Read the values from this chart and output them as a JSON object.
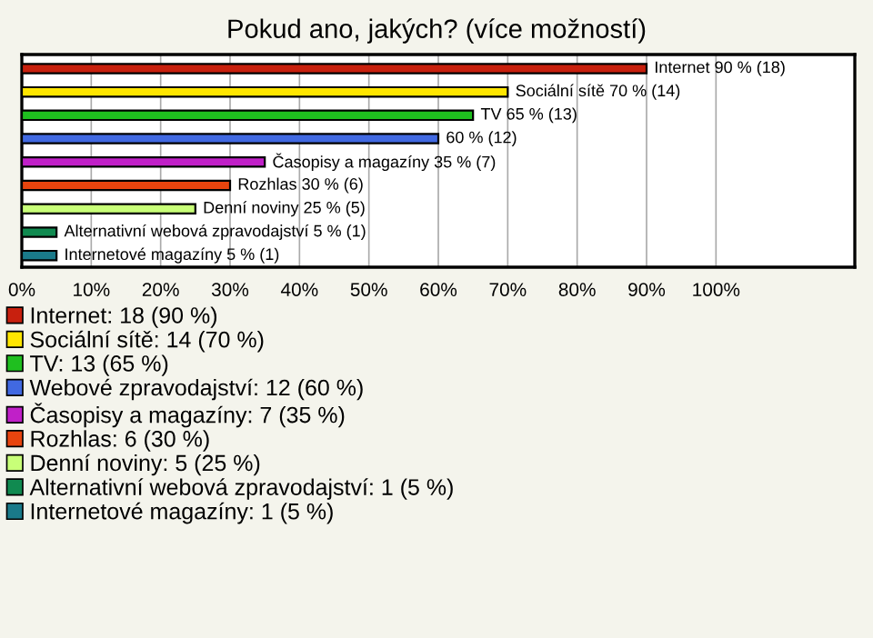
{
  "chart_data": {
    "type": "bar",
    "orientation": "horizontal",
    "title": "Pokud ano, jakých? (více možností)",
    "categories": [
      null,
      null,
      null,
      null,
      null,
      null,
      null,
      null,
      null
    ],
    "series": [
      {
        "name": "Internet: 18 (90 %)",
        "color": "#c8200e",
        "values": [
          90,
          null,
          null,
          null,
          null,
          null,
          null,
          null,
          null
        ],
        "value_labels": [
          "Internet 90 % (18)",
          null,
          null,
          null,
          null,
          null,
          null,
          null,
          null
        ]
      },
      {
        "name": "Sociální sítě: 14 (70 %)",
        "color": "#ffe600",
        "values": [
          null,
          70,
          null,
          null,
          null,
          null,
          null,
          null,
          null
        ],
        "value_labels": [
          null,
          "Sociální sítě 70 % (14)",
          null,
          null,
          null,
          null,
          null,
          null,
          null
        ]
      },
      {
        "name": "TV: 13 (65 %)",
        "color": "#1fbf1f",
        "values": [
          null,
          null,
          65,
          null,
          null,
          null,
          null,
          null,
          null
        ],
        "value_labels": [
          null,
          null,
          "TV 65 % (13)",
          null,
          null,
          null,
          null,
          null,
          null
        ]
      },
      {
        "name": "Webové zpravodajství: 12 (60 %)",
        "color": "#4169e1",
        "values": [
          null,
          null,
          null,
          60,
          null,
          null,
          null,
          null,
          null
        ],
        "value_labels": [
          null,
          null,
          null,
          "60 % (12)",
          null,
          null,
          null,
          null,
          null
        ]
      },
      {
        "name": "Časopisy a magazíny: 7 (35 %)",
        "color": "#c020c8",
        "values": [
          null,
          null,
          null,
          null,
          35,
          null,
          null,
          null,
          null
        ],
        "value_labels": [
          null,
          null,
          null,
          null,
          "Časopisy a magazíny 35 % (7)",
          null,
          null,
          null,
          null
        ]
      },
      {
        "name": "Rozhlas: 6 (30 %)",
        "color": "#e8440e",
        "values": [
          null,
          null,
          null,
          null,
          null,
          30,
          null,
          null,
          null
        ],
        "value_labels": [
          null,
          null,
          null,
          null,
          null,
          "Rozhlas 30 % (6)",
          null,
          null,
          null
        ]
      },
      {
        "name": "Denní noviny: 5 (25 %)",
        "color": "#c8ff78",
        "values": [
          null,
          null,
          null,
          null,
          null,
          null,
          25,
          null,
          null
        ],
        "value_labels": [
          null,
          null,
          null,
          null,
          null,
          null,
          "Denní noviny 25 % (5)",
          null,
          null
        ]
      },
      {
        "name": "Alternativní webová zpravodajství: 1 (5 %)",
        "color": "#108a50",
        "values": [
          null,
          null,
          null,
          null,
          null,
          null,
          null,
          5,
          null
        ],
        "value_labels": [
          null,
          null,
          null,
          null,
          null,
          null,
          null,
          "Alternativní webová zpravodajství 5 % (1)",
          null
        ]
      },
      {
        "name": "Internetové magazíny: 1 (5 %)",
        "color": "#1a7a8a",
        "values": [
          null,
          null,
          null,
          null,
          null,
          null,
          null,
          null,
          5
        ],
        "value_labels": [
          null,
          null,
          null,
          null,
          null,
          null,
          null,
          null,
          "Internetové magazíny 5 % (1)"
        ]
      }
    ],
    "xlim": [
      0,
      120
    ],
    "xticks": [
      {
        "value": 0,
        "label": "0%"
      },
      {
        "value": 10,
        "label": "10%"
      },
      {
        "value": 20,
        "label": "20%"
      },
      {
        "value": 30,
        "label": "30%"
      },
      {
        "value": 40,
        "label": "40%"
      },
      {
        "value": 50,
        "label": "50%"
      },
      {
        "value": 60,
        "label": "60%"
      },
      {
        "value": 70,
        "label": "70%"
      },
      {
        "value": 80,
        "label": "80%"
      },
      {
        "value": 90,
        "label": "90%"
      },
      {
        "value": 100,
        "label": "100%"
      }
    ],
    "grid": "x",
    "legend": "bottom"
  }
}
